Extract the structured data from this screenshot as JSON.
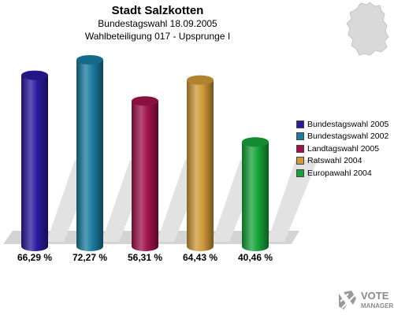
{
  "header": {
    "title": "Stadt Salzkotten",
    "subtitle": "Bundestagswahl 18.09.2005",
    "subtitle2": "Wahlbeteiligung 017 - Upsprunge I"
  },
  "chart_data": {
    "type": "bar",
    "title": "Stadt Salzkotten",
    "categories": [
      "Bundestagswahl 2005",
      "Bundestagswahl 2002",
      "Landtagswahl 2005",
      "Ratswahl 2004",
      "Europawahl 2004"
    ],
    "values": [
      66.29,
      72.27,
      56.31,
      64.43,
      40.46
    ],
    "value_labels": [
      "66,29 %",
      "72,27 %",
      "56,31 %",
      "64,43 %",
      "40,46 %"
    ],
    "colors": [
      "#2a1a9e",
      "#1a7ca0",
      "#a0134a",
      "#cf9a3a",
      "#18a33a"
    ],
    "legend_position": "right",
    "grid": false
  },
  "legend": {
    "items": [
      {
        "label": "Bundestagswahl 2005",
        "color": "#2a1a9e"
      },
      {
        "label": "Bundestagswahl 2002",
        "color": "#1a7ca0"
      },
      {
        "label": "Landtagswahl 2005",
        "color": "#a0134a"
      },
      {
        "label": "Ratswahl 2004",
        "color": "#cf9a3a"
      },
      {
        "label": "Europawahl 2004",
        "color": "#18a33a"
      }
    ]
  },
  "logo": {
    "line1": "VOTE",
    "line2": "MANAGER"
  }
}
